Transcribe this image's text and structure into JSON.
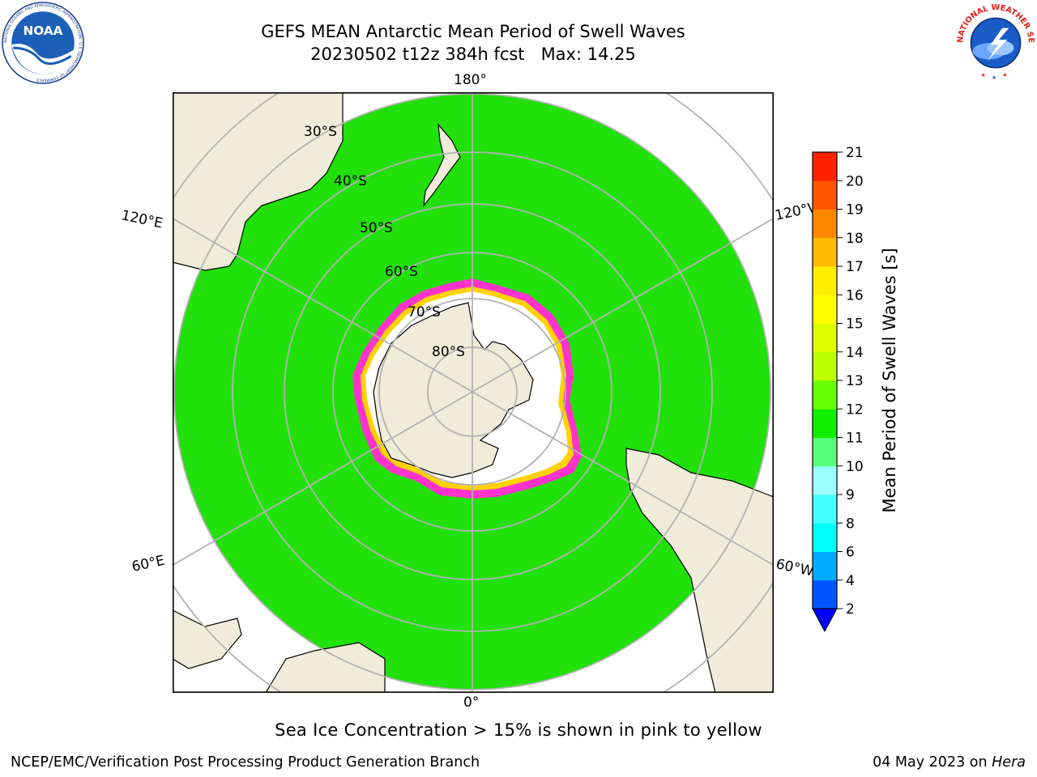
{
  "header": {
    "title": "GEFS MEAN Antarctic Mean Period of Swell Waves",
    "subtitle": "20230502 t12z 384h fcst   Max: 14.25"
  },
  "logos": {
    "noaa": {
      "text": "NOAA",
      "ring_text": "NATIONAL OCEANIC AND ATMOSPHERIC ADMINISTRATION · U.S. DEPARTMENT OF COMMERCE"
    },
    "nws": {
      "ring_text": "NATIONAL WEATHER SERVICE"
    }
  },
  "map": {
    "projection": "south polar stereographic",
    "lon_labels": {
      "top": "180°",
      "bottom": "0°",
      "left_upper": "120°E",
      "left_lower": "60°E",
      "right_upper": "120°W",
      "right_lower": "60°W"
    },
    "lat_labels": [
      "30°S",
      "40°S",
      "50°S",
      "60°S",
      "70°S",
      "80°S"
    ],
    "colors": {
      "land": "#efecd9",
      "grid": "#b3b3b3",
      "ice_edge": "#ff33cc",
      "ice_inner": "#ffd200",
      "ocean_main": "#22e00a",
      "ocean_cyan": "#33ffff",
      "ocean_light": "#99ffff"
    }
  },
  "colorbar": {
    "label": "Mean Period of Swell Waves [s]",
    "ticks": [
      "2",
      "4",
      "6",
      "8",
      "9",
      "10",
      "11",
      "12",
      "13",
      "14",
      "15",
      "16",
      "17",
      "18",
      "19",
      "20",
      "21"
    ],
    "colors": [
      "#0055ff",
      "#00aaff",
      "#00ffff",
      "#44ffff",
      "#99ffff",
      "#55ff77",
      "#11ee00",
      "#66ff00",
      "#bbff00",
      "#ddff00",
      "#ffff00",
      "#ffee00",
      "#ffbb00",
      "#ff8800",
      "#ff5500",
      "#ff2200"
    ],
    "extend_color": "#0000ff"
  },
  "notes": {
    "ice": "Sea Ice Concentration > 15% is shown in pink to yellow"
  },
  "footer": {
    "left": "NCEP/EMC/Verification Post Processing Product Generation Branch",
    "right_date": "04 May 2023 on ",
    "right_host": "Hera"
  }
}
